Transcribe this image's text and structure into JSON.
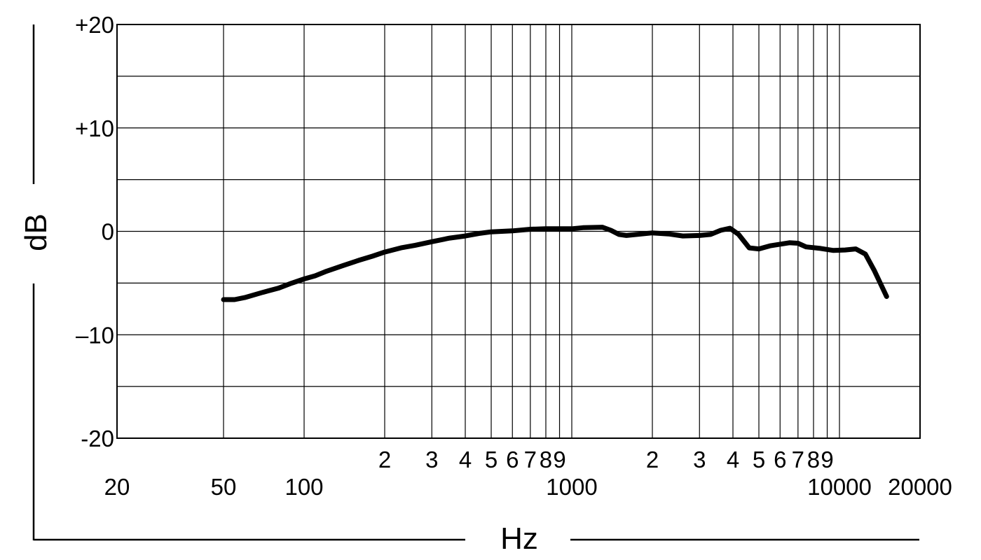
{
  "chart_data": {
    "type": "line",
    "xscale": "log",
    "xlim": [
      20,
      20000
    ],
    "ylim": [
      -20,
      20
    ],
    "grid": true,
    "xlabel": "Hz",
    "ylabel": "dB",
    "y_ticks": [
      {
        "value": 20,
        "label": "+20"
      },
      {
        "value": 10,
        "label": "+10"
      },
      {
        "value": 0,
        "label": "0"
      },
      {
        "value": -10,
        "label": "–10"
      },
      {
        "value": -20,
        "label": "-20"
      }
    ],
    "y_gridlines": [
      20,
      15,
      10,
      5,
      0,
      -5,
      -10,
      -15,
      -20
    ],
    "x_gridlines": [
      50,
      100,
      200,
      300,
      400,
      500,
      600,
      700,
      800,
      900,
      1000,
      2000,
      3000,
      4000,
      5000,
      6000,
      7000,
      8000,
      9000,
      10000,
      20000
    ],
    "x_minor_labels": [
      {
        "value": 200,
        "label": "2"
      },
      {
        "value": 300,
        "label": "3"
      },
      {
        "value": 400,
        "label": "4"
      },
      {
        "value": 500,
        "label": "5"
      },
      {
        "value": 600,
        "label": "6"
      },
      {
        "value": 700,
        "label": "7"
      },
      {
        "value": 800,
        "label": "8"
      },
      {
        "value": 900,
        "label": "9"
      },
      {
        "value": 2000,
        "label": "2"
      },
      {
        "value": 3000,
        "label": "3"
      },
      {
        "value": 4000,
        "label": "4"
      },
      {
        "value": 5000,
        "label": "5"
      },
      {
        "value": 6000,
        "label": "6"
      },
      {
        "value": 7000,
        "label": "7"
      },
      {
        "value": 8000,
        "label": "8"
      },
      {
        "value": 9000,
        "label": "9"
      }
    ],
    "x_major_labels": [
      {
        "value": 20,
        "label": "20"
      },
      {
        "value": 50,
        "label": "50"
      },
      {
        "value": 100,
        "label": "100"
      },
      {
        "value": 1000,
        "label": "1000"
      },
      {
        "value": 10000,
        "label": "10000"
      },
      {
        "value": 20000,
        "label": "20000"
      }
    ],
    "series": [
      {
        "color": "#000000",
        "points": [
          [
            50,
            -6.6
          ],
          [
            55,
            -6.6
          ],
          [
            60,
            -6.4
          ],
          [
            70,
            -5.9
          ],
          [
            80,
            -5.5
          ],
          [
            90,
            -5.0
          ],
          [
            100,
            -4.6
          ],
          [
            110,
            -4.3
          ],
          [
            120,
            -3.9
          ],
          [
            140,
            -3.3
          ],
          [
            160,
            -2.8
          ],
          [
            180,
            -2.4
          ],
          [
            200,
            -2.0
          ],
          [
            230,
            -1.6
          ],
          [
            260,
            -1.35
          ],
          [
            300,
            -1.0
          ],
          [
            350,
            -0.65
          ],
          [
            400,
            -0.45
          ],
          [
            450,
            -0.2
          ],
          [
            500,
            -0.05
          ],
          [
            600,
            0.05
          ],
          [
            700,
            0.2
          ],
          [
            800,
            0.25
          ],
          [
            900,
            0.25
          ],
          [
            1000,
            0.25
          ],
          [
            1100,
            0.35
          ],
          [
            1300,
            0.4
          ],
          [
            1400,
            0.1
          ],
          [
            1500,
            -0.3
          ],
          [
            1600,
            -0.4
          ],
          [
            2000,
            -0.15
          ],
          [
            2300,
            -0.25
          ],
          [
            2600,
            -0.45
          ],
          [
            3000,
            -0.4
          ],
          [
            3300,
            -0.3
          ],
          [
            3600,
            0.1
          ],
          [
            3900,
            0.3
          ],
          [
            4200,
            -0.3
          ],
          [
            4600,
            -1.6
          ],
          [
            5000,
            -1.7
          ],
          [
            5500,
            -1.4
          ],
          [
            6500,
            -1.1
          ],
          [
            7000,
            -1.15
          ],
          [
            7500,
            -1.5
          ],
          [
            8500,
            -1.65
          ],
          [
            9500,
            -1.85
          ],
          [
            10500,
            -1.8
          ],
          [
            11500,
            -1.7
          ],
          [
            12500,
            -2.2
          ],
          [
            13500,
            -3.8
          ],
          [
            15000,
            -6.3
          ]
        ]
      }
    ]
  }
}
